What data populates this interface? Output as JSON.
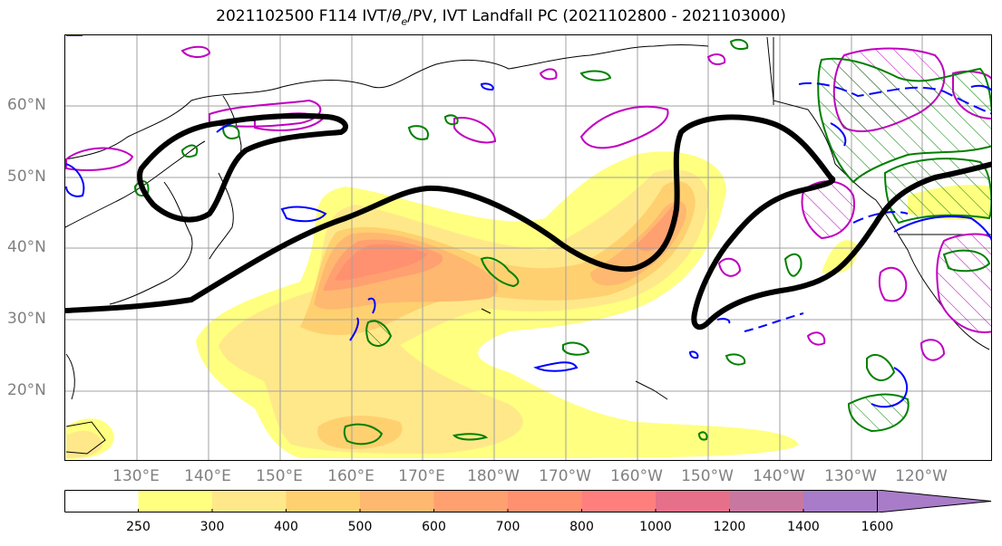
{
  "title": {
    "pre": "2021102500 F114 IVT/",
    "theta": "θ",
    "theta_sub": "e",
    "post": "/PV, IVT Landfall PC (2021102800 - 2021103000)"
  },
  "lat_labels": [
    "60°N",
    "50°N",
    "40°N",
    "30°N",
    "20°N"
  ],
  "lon_labels": [
    "130°E",
    "140°E",
    "150°E",
    "160°E",
    "170°E",
    "180°W",
    "170°W",
    "160°W",
    "150°W",
    "140°W",
    "130°W",
    "120°W"
  ],
  "colorbar": {
    "ticks": [
      "250",
      "300",
      "400",
      "500",
      "600",
      "700",
      "800",
      "1000",
      "1200",
      "1400",
      "1600"
    ],
    "colors": [
      "#ffffff",
      "#ffff80",
      "#ffe88a",
      "#ffd070",
      "#ffb870",
      "#ffa070",
      "#ff9070",
      "#ff7f7f",
      "#e6708a",
      "#c878a0",
      "#a87cc8"
    ]
  },
  "legend_colors": {
    "ivt_contour": "#000000",
    "pv_positive": "#008000",
    "pv_negative": "#0000ff",
    "theta_e": "#c000c0"
  }
}
